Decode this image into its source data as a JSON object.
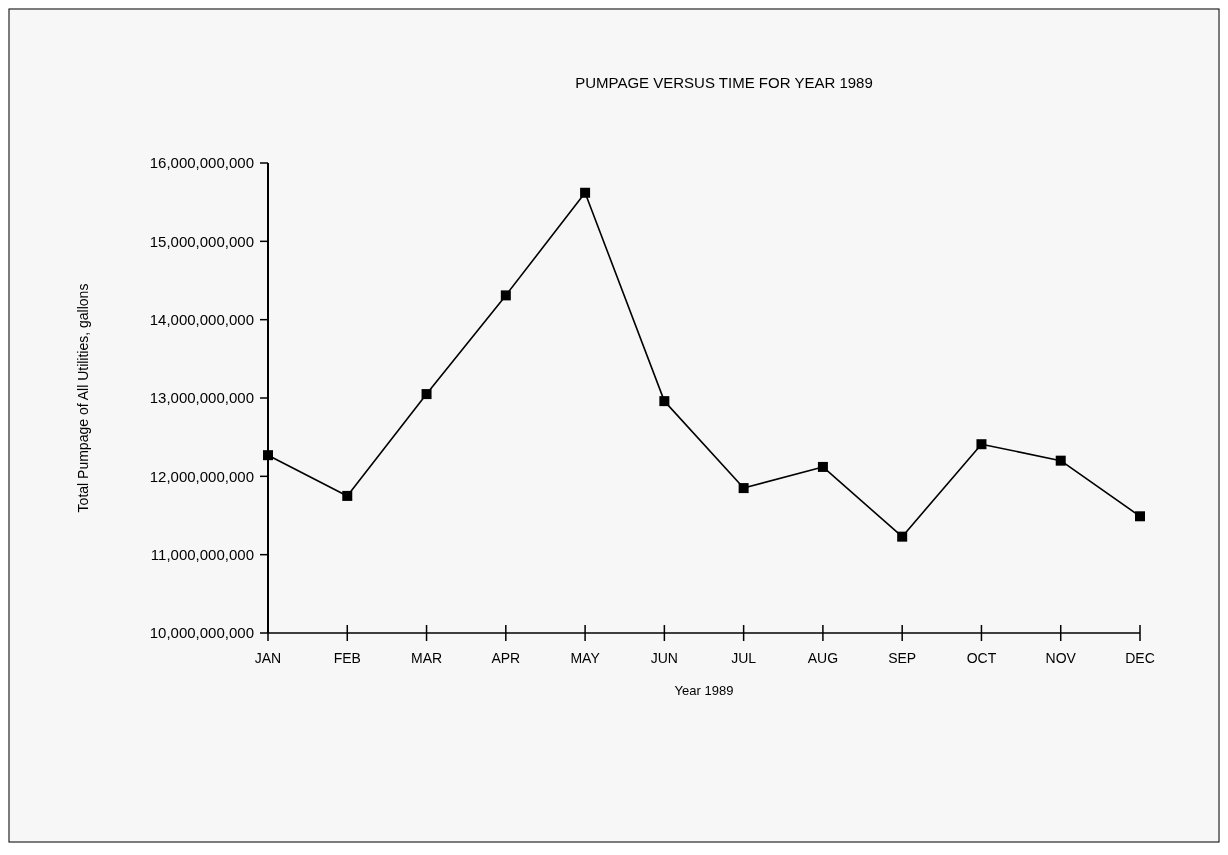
{
  "chart_data": {
    "type": "line",
    "title": "PUMPAGE VERSUS TIME FOR YEAR 1989",
    "xlabel": "Year 1989",
    "ylabel": "Total Pumpage of All Utilities, gallons",
    "categories": [
      "JAN",
      "FEB",
      "MAR",
      "APR",
      "MAY",
      "JUN",
      "JUL",
      "AUG",
      "SEP",
      "OCT",
      "NOV",
      "DEC"
    ],
    "series": [
      {
        "color": "#000000",
        "values": [
          12270000000,
          11750000000,
          13050000000,
          14310000000,
          15620000000,
          12960000000,
          11850000000,
          12120000000,
          11230000000,
          12410000000,
          12200000000,
          11490000000
        ]
      }
    ],
    "ylim": [
      10000000000,
      16000000000
    ],
    "yticks": [
      {
        "value": 10000000000,
        "label": "10,000,000,000"
      },
      {
        "value": 11000000000,
        "label": "11,000,000,000"
      },
      {
        "value": 12000000000,
        "label": "12,000,000,000"
      },
      {
        "value": 13000000000,
        "label": "13,000,000,000"
      },
      {
        "value": 14000000000,
        "label": "14,000,000,000"
      },
      {
        "value": 15000000000,
        "label": "15,000,000,000"
      },
      {
        "value": 16000000000,
        "label": "16,000,000,000"
      }
    ],
    "marker": "square",
    "line_style": "solid",
    "grid": false
  }
}
